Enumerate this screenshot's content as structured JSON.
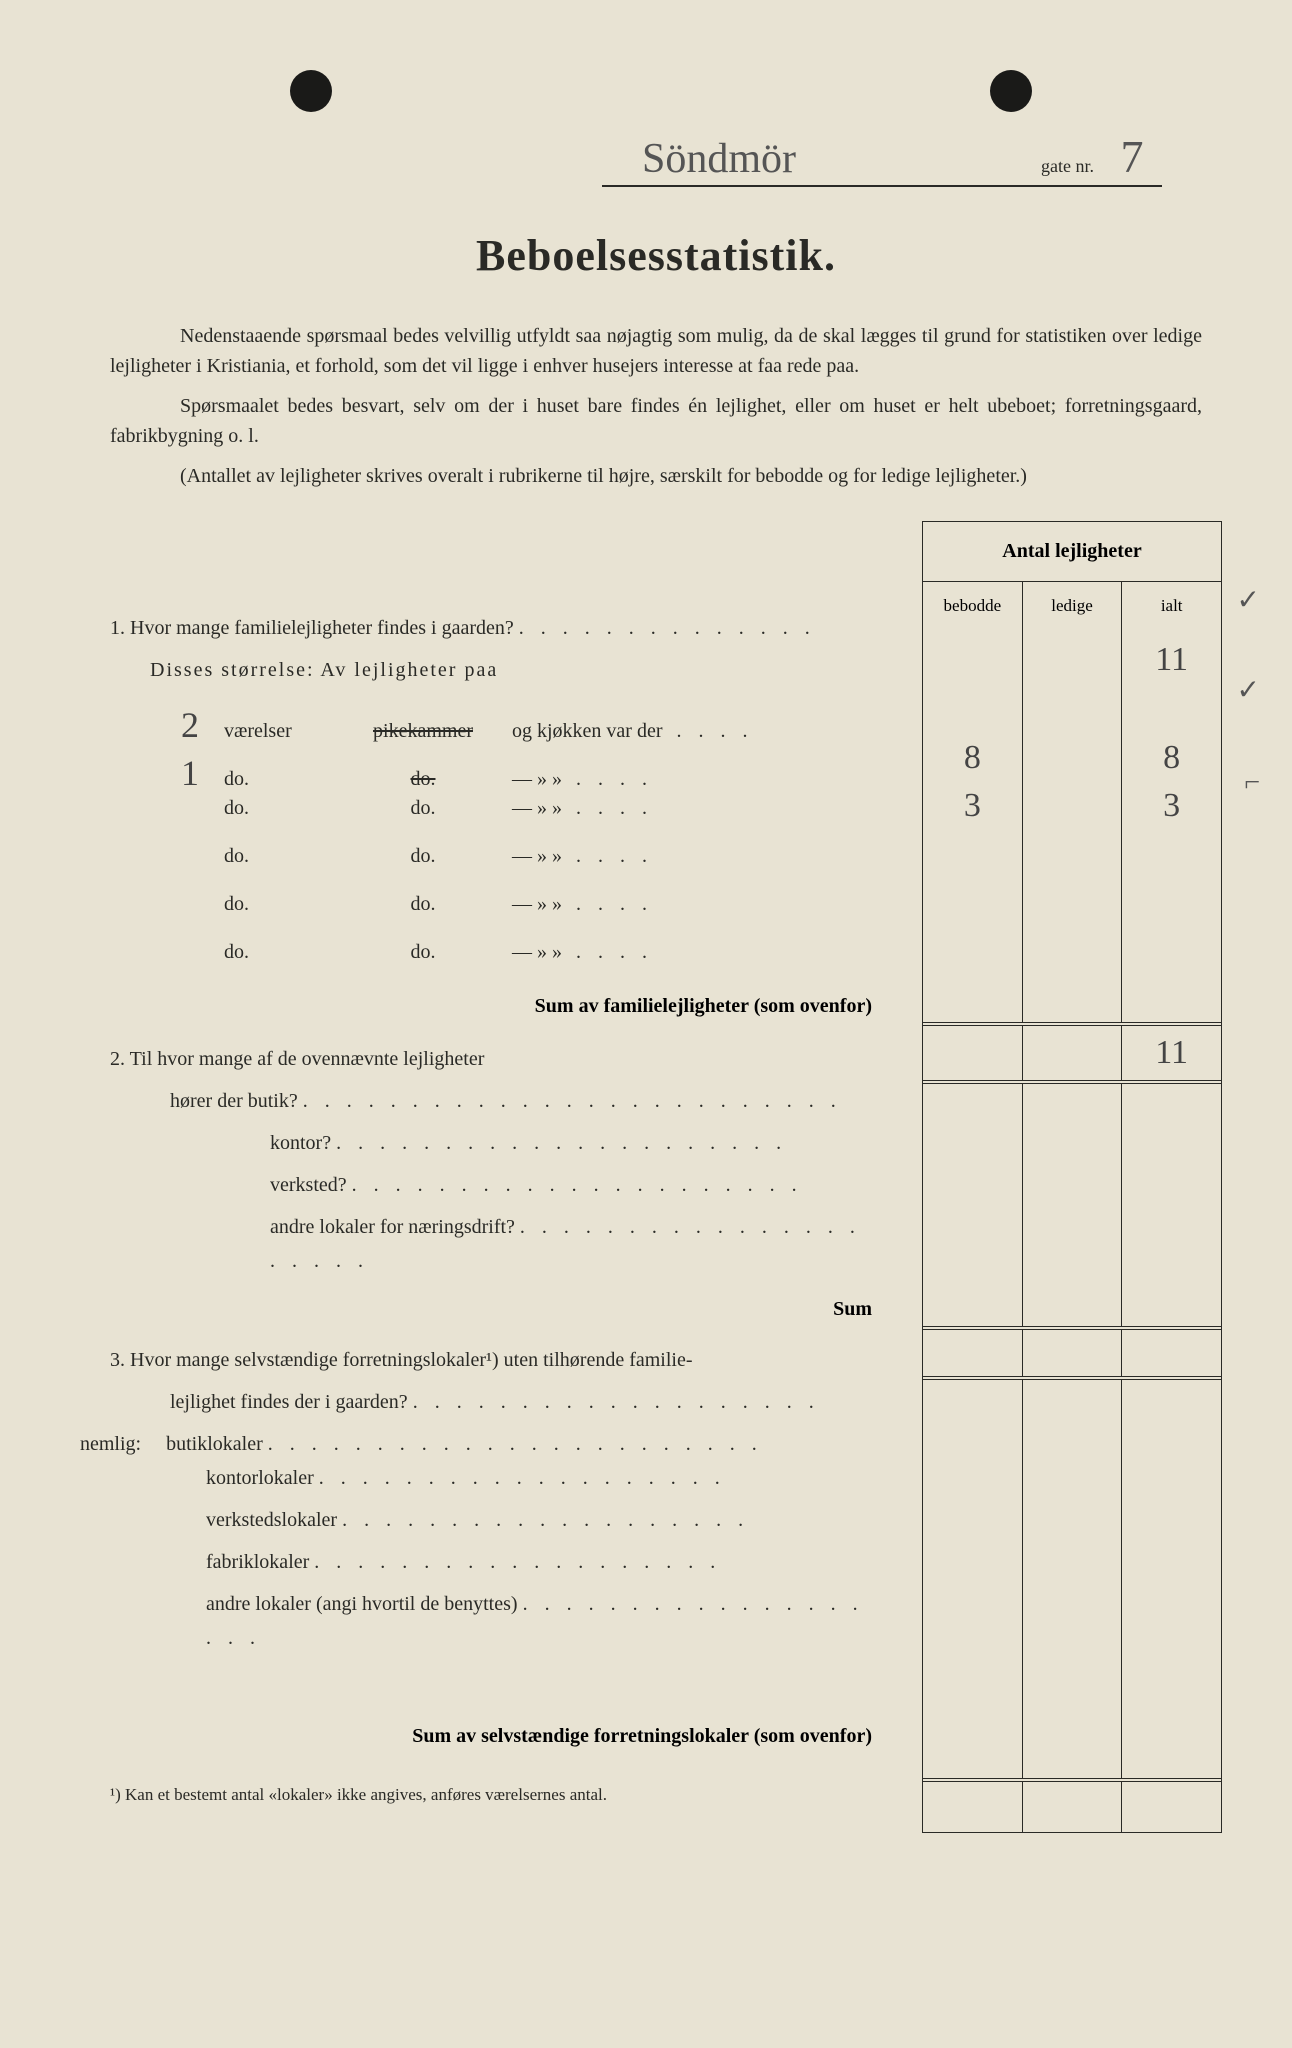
{
  "header": {
    "street_name": "Söndmör",
    "gate_label": "gate nr.",
    "gate_number": "7"
  },
  "title": "Beboelsesstatistik.",
  "intro": {
    "p1": "Nedenstaaende spørsmaal bedes velvillig utfyldt saa nøjagtig som mulig, da de skal lægges til grund for statistiken over ledige lejligheter i Kristiania, et forhold, som det vil ligge i enhver husejers interesse at faa rede paa.",
    "p2": "Spørsmaalet bedes besvart, selv om der i huset bare findes én lejlighet, eller om huset er helt ubeboet; forretningsgaard, fabrikbygning o. l.",
    "p3": "(Antallet av lejligheter skrives overalt i rubrikerne til højre, særskilt for bebodde og for ledige lejligheter.)"
  },
  "table": {
    "header_main": "Antal lejligheter",
    "col1": "bebodde",
    "col2": "ledige",
    "col3": "ialt"
  },
  "q1": {
    "text": "1.  Hvor mange familielejligheter findes i gaarden?",
    "subtitle": "Disses størrelse:   Av lejligheter paa",
    "rooms": [
      {
        "n": "2",
        "label": "værelser",
        "mid": "pikekammer",
        "strike": true,
        "end": "og        kjøkken var der",
        "b": "8",
        "i": "8"
      },
      {
        "n": "1",
        "label": "do.",
        "mid": "do.",
        "strike": true,
        "end": "—      »     »",
        "b": "3",
        "i": "3"
      },
      {
        "n": "",
        "label": "do.",
        "mid": "do.",
        "strike": false,
        "end": "—      »     »",
        "b": "",
        "i": ""
      },
      {
        "n": "",
        "label": "do.",
        "mid": "do.",
        "strike": false,
        "end": "—      »     »",
        "b": "",
        "i": ""
      },
      {
        "n": "",
        "label": "do.",
        "mid": "do.",
        "strike": false,
        "end": "—      »     »",
        "b": "",
        "i": ""
      },
      {
        "n": "",
        "label": "do.",
        "mid": "do.",
        "strike": false,
        "end": "—      »     »",
        "b": "",
        "i": ""
      }
    ],
    "total_ialt": "11",
    "sum_ialt": "11",
    "sum_label": "Sum av familielejligheter (som ovenfor)"
  },
  "q2": {
    "text": "2.  Til hvor mange af de ovennævnte lejligheter",
    "sub": "hører der butik?",
    "items": [
      "kontor?",
      "verksted?",
      "andre lokaler for næringsdrift?"
    ],
    "sum": "Sum"
  },
  "q3": {
    "text1": "3.  Hvor mange selvstændige forretningslokaler¹) uten tilhørende familie-",
    "text2": "lejlighet findes der i gaarden?",
    "nemlig": "nemlig:",
    "items": [
      "butiklokaler",
      "kontorlokaler",
      "verkstedslokaler",
      "fabriklokaler",
      "andre lokaler (angi hvortil de benyttes)"
    ],
    "sum_label": "Sum av selvstændige forretningslokaler (som ovenfor)"
  },
  "footnote": "¹)  Kan et bestemt antal «lokaler» ikke angives, anføres værelsernes antal.",
  "checks": {
    "c1": "✓",
    "c2": "✓",
    "c3": "⌐"
  },
  "colors": {
    "paper": "#e8e3d3",
    "ink": "#2a2a26",
    "pencil": "#555"
  }
}
